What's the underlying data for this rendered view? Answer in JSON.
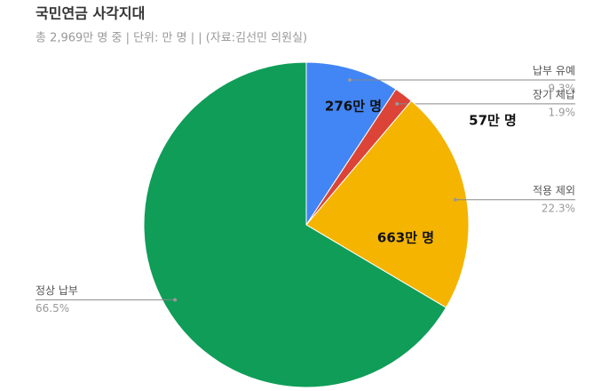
{
  "chart_data": {
    "type": "pie",
    "title": "국민연금 사각지대",
    "subtitle": "총 2,969만 명 중 | 단위: 만 명 | | (자료:김선민 의원실)",
    "categories": [
      "납부 유예",
      "장기 체납",
      "적용 제외",
      "정상 납부"
    ],
    "values": [
      9.3,
      1.9,
      22.3,
      66.5
    ],
    "value_labels": [
      "9.3%",
      "1.9%",
      "22.3%",
      "66.5%"
    ],
    "slice_labels": [
      "276만 명",
      "57만 명",
      "663만 명",
      null
    ],
    "colors": [
      "#4285f4",
      "#db4437",
      "#f4b400",
      "#0f9d58"
    ]
  }
}
